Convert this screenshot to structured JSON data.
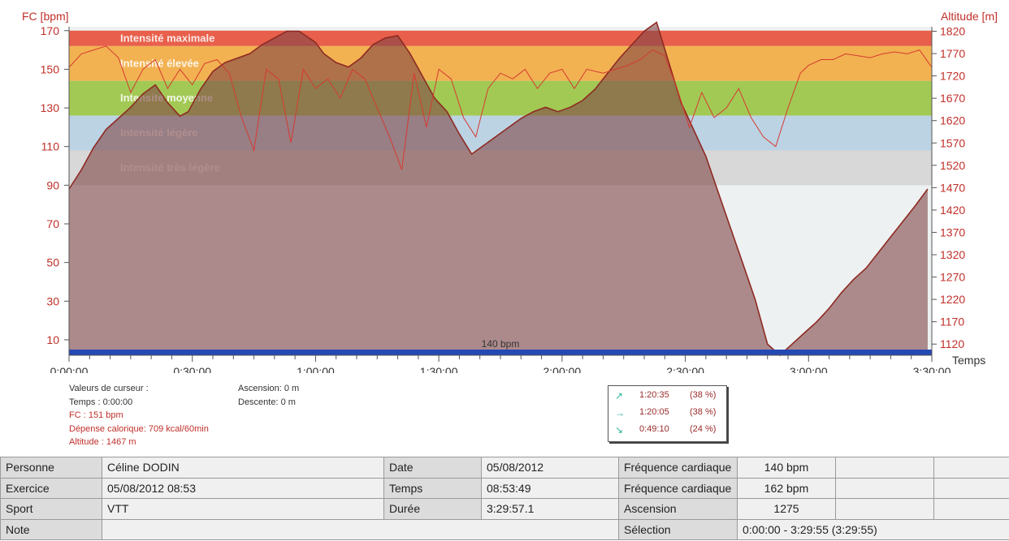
{
  "chart_data": {
    "type": "area",
    "y_left_label": "FC [bpm]",
    "y_right_label": "Altitude  [m]",
    "x_label": "Temps",
    "x_ticks": [
      "0:00:00",
      "0:30:00",
      "1:00:00",
      "1:30:00",
      "2:00:00",
      "2:30:00",
      "3:00:00",
      "3:30:00"
    ],
    "x_range_minutes": [
      0,
      210
    ],
    "y_left_ticks": [
      170,
      150,
      130,
      110,
      90,
      70,
      50,
      30,
      10
    ],
    "y_left_range": [
      2,
      172
    ],
    "y_right_ticks": [
      1820,
      1770,
      1720,
      1670,
      1620,
      1570,
      1520,
      1470,
      1420,
      1370,
      1320,
      1270,
      1220,
      1170,
      1120
    ],
    "y_right_range": [
      1095,
      1830
    ],
    "zones": [
      {
        "name": "Intensité maximale",
        "from": 162,
        "to": 170,
        "color": "#e8604c"
      },
      {
        "name": "Intensité élevée",
        "from": 144,
        "to": 162,
        "color": "#f2b252"
      },
      {
        "name": "Intensité moyenne",
        "from": 126,
        "to": 144,
        "color": "#a3c955"
      },
      {
        "name": "Intensité légère",
        "from": 108,
        "to": 126,
        "color": "#bcd3e4"
      },
      {
        "name": "Intensité très légère",
        "from": 90,
        "to": 108,
        "color": "#d8d8d8"
      }
    ],
    "threshold": {
      "label": "140 bpm",
      "color": "#2448b4"
    },
    "altitude_series": {
      "name": "Altitude",
      "unit": "m",
      "x_minutes": [
        0,
        3,
        6,
        9,
        12,
        15,
        18,
        21,
        24,
        27,
        29,
        32,
        35,
        38,
        41,
        44,
        47,
        50,
        53,
        56,
        60,
        62,
        65,
        68,
        71,
        74,
        77,
        80,
        83,
        86,
        89,
        92,
        95,
        98,
        101,
        104,
        107,
        110,
        113,
        116,
        119,
        122,
        125,
        128,
        131,
        134,
        137,
        140,
        143,
        146,
        149,
        152,
        155,
        158,
        161,
        164,
        167,
        170,
        173,
        176,
        179,
        182,
        185,
        188,
        191,
        194,
        197,
        200,
        203,
        206,
        209
      ],
      "values": [
        1467,
        1510,
        1560,
        1600,
        1625,
        1650,
        1680,
        1700,
        1660,
        1630,
        1640,
        1690,
        1730,
        1750,
        1760,
        1770,
        1790,
        1805,
        1820,
        1820,
        1795,
        1770,
        1750,
        1740,
        1760,
        1790,
        1805,
        1810,
        1770,
        1720,
        1670,
        1640,
        1590,
        1545,
        1565,
        1585,
        1605,
        1625,
        1640,
        1650,
        1640,
        1650,
        1665,
        1690,
        1725,
        1760,
        1790,
        1820,
        1840,
        1750,
        1660,
        1600,
        1540,
        1460,
        1380,
        1300,
        1220,
        1120,
        1095,
        1120,
        1145,
        1170,
        1200,
        1235,
        1265,
        1290,
        1325,
        1360,
        1395,
        1430,
        1467
      ]
    },
    "heart_rate_series": {
      "name": "FC",
      "unit": "bpm",
      "x_minutes": [
        0,
        3,
        6,
        9,
        12,
        15,
        18,
        21,
        24,
        27,
        30,
        33,
        36,
        39,
        42,
        45,
        48,
        51,
        54,
        57,
        60,
        63,
        66,
        69,
        72,
        75,
        78,
        81,
        84,
        87,
        90,
        93,
        96,
        99,
        102,
        105,
        108,
        111,
        114,
        117,
        120,
        123,
        126,
        130,
        133,
        136,
        139,
        142,
        145,
        148,
        151,
        154,
        157,
        160,
        163,
        166,
        169,
        172,
        175,
        178,
        180,
        183,
        186,
        189,
        192,
        195,
        198,
        201,
        204,
        207,
        210
      ],
      "values": [
        151,
        158,
        160,
        162,
        156,
        138,
        150,
        155,
        140,
        150,
        142,
        153,
        155,
        148,
        125,
        108,
        150,
        145,
        112,
        150,
        140,
        145,
        135,
        150,
        145,
        130,
        115,
        98,
        148,
        120,
        150,
        145,
        125,
        115,
        140,
        148,
        145,
        150,
        140,
        148,
        150,
        140,
        150,
        148,
        150,
        152,
        155,
        160,
        157,
        140,
        120,
        138,
        125,
        130,
        140,
        125,
        115,
        110,
        130,
        148,
        152,
        155,
        155,
        158,
        157,
        156,
        158,
        159,
        158,
        160,
        151
      ]
    }
  },
  "cursor_values": {
    "title": "Valeurs de curseur :",
    "time": "Temps : 0:00:00",
    "fc": "FC : 151 bpm",
    "calories": "Dépense calorique: 709 kcal/60min",
    "altitude": "Altitude : 1467 m",
    "ascension": "Ascension: 0 m",
    "descente": "Descente: 0 m"
  },
  "slope_distribution": [
    {
      "icon": "arrow-up-right-icon",
      "glyph": "↗",
      "time": "1:20:35",
      "pct": "(38 %)"
    },
    {
      "icon": "arrow-right-icon",
      "glyph": "→",
      "time": "1:20:05",
      "pct": "(38 %)"
    },
    {
      "icon": "arrow-down-right-icon",
      "glyph": "↘",
      "time": "0:49:10",
      "pct": "(24 %)"
    }
  ],
  "info_table": {
    "personne_label": "Personne",
    "personne": "Céline DODIN",
    "date_label": "Date",
    "date": "05/08/2012",
    "fc1_label": "Fréquence cardiaque",
    "fc1": "140 bpm",
    "exercice_label": "Exercice",
    "exercice": "05/08/2012 08:53",
    "temps_label": "Temps",
    "temps": "08:53:49",
    "fc2_label": "Fréquence cardiaque",
    "fc2": "162 bpm",
    "sport_label": "Sport",
    "sport": "VTT",
    "duree_label": "Durée",
    "duree": "3:29:57.1",
    "ascension_label": "Ascension",
    "ascension": "1275",
    "note_label": "Note",
    "selection_label": "Sélection",
    "selection": "0:00:00 - 3:29:55 (3:29:55)"
  }
}
